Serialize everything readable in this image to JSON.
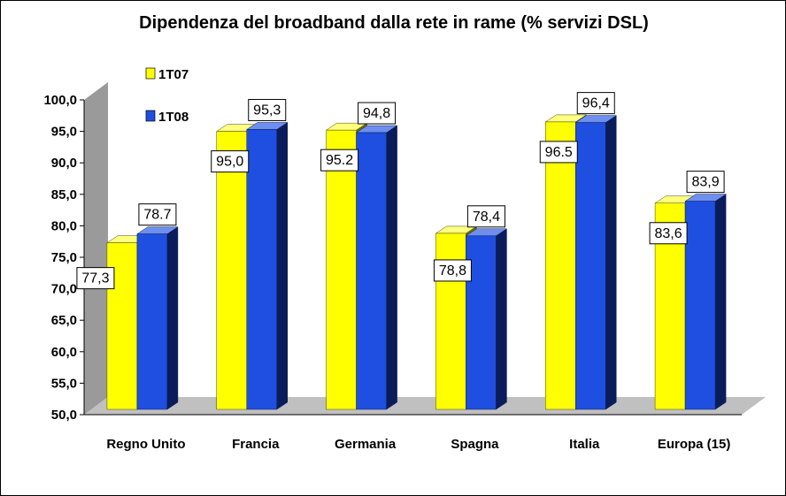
{
  "chart_data": {
    "type": "bar",
    "title": "Dipendenza del broadband dalla rete in rame (% servizi DSL)",
    "xlabel": "",
    "ylabel": "",
    "ylim": [
      50,
      100
    ],
    "yticks": [
      "50,0",
      "55,0",
      "60,0",
      "65,0",
      "70,0",
      "75,0",
      "80,0",
      "85,0",
      "90,0",
      "95,0",
      "100,0"
    ],
    "categories": [
      "Regno Unito",
      "Francia",
      "Germania",
      "Spagna",
      "Italia",
      "Europa (15)"
    ],
    "series": [
      {
        "name": "1T07",
        "color": "#ffff00",
        "values": [
          77.3,
          95.0,
          95.2,
          78.8,
          96.5,
          83.6
        ],
        "labels": [
          "77,3",
          "95,0",
          "95.2",
          "78,8",
          "96.5",
          "83,6"
        ]
      },
      {
        "name": "1T08",
        "color": "#1f4fe0",
        "values": [
          78.7,
          95.3,
          94.8,
          78.4,
          96.4,
          83.9
        ],
        "labels": [
          "78.7",
          "95,3",
          "94,8",
          "78,4",
          "96,4",
          "83,9"
        ]
      }
    ],
    "legend": "top-left",
    "grid": false
  }
}
